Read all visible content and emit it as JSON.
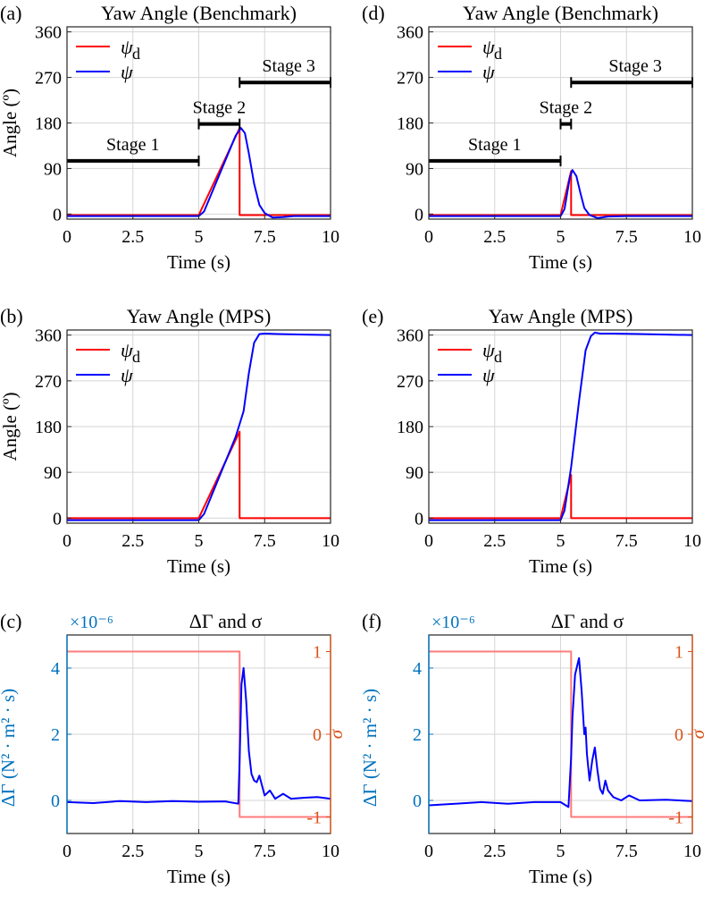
{
  "colors": {
    "psi_d": "#ff0000",
    "psi": "#0000ff",
    "delta_gamma_axis": "#0072BD",
    "sigma_axis": "#D95319",
    "sigma_line": "#ff7b7b",
    "stage_bar": "#000000",
    "grid": "#d6d6d6"
  },
  "chart_data": [
    {
      "id": "a",
      "panel_label": "(a)",
      "type": "line",
      "title": "Yaw Angle (Benchmark)",
      "xlabel": "Time (s)",
      "ylabel": "Angle (º)",
      "xlim": [
        0,
        10
      ],
      "ylim": [
        -10,
        370
      ],
      "xticks": [
        0,
        2.5,
        5,
        7.5,
        10
      ],
      "xtick_labels": [
        "0",
        "2.5",
        "5",
        "7.5",
        "10"
      ],
      "yticks": [
        0,
        90,
        180,
        270,
        360
      ],
      "ytick_labels": [
        "0",
        "90",
        "180",
        "270",
        "360"
      ],
      "legend": {
        "position": "top-left",
        "entries": [
          {
            "main": "ψ",
            "sub": "d"
          },
          {
            "main": "ψ",
            "sub": ""
          }
        ]
      },
      "series": [
        {
          "name": "ψd",
          "color": "#ff0000",
          "x": [
            0,
            5,
            6.55,
            6.55,
            10
          ],
          "y": [
            -2,
            -2,
            170,
            -2,
            -2
          ]
        },
        {
          "name": "ψ",
          "color": "#0000ff",
          "x": [
            0,
            2,
            5,
            5.2,
            6.4,
            6.6,
            6.75,
            6.9,
            7.1,
            7.3,
            7.5,
            7.8,
            8.2,
            8.6,
            9,
            10
          ],
          "y": [
            -4,
            -4,
            -4,
            5,
            155,
            170,
            160,
            120,
            60,
            18,
            2,
            -7,
            -6,
            -4,
            -4,
            -4
          ]
        }
      ],
      "stages": [
        {
          "label": "Stage 1",
          "x0": 0,
          "x1": 5,
          "y": 105
        },
        {
          "label": "Stage 2",
          "x0": 5,
          "x1": 6.55,
          "y": 178
        },
        {
          "label": "Stage 3",
          "x0": 6.55,
          "x1": 10,
          "y": 260
        }
      ]
    },
    {
      "id": "d",
      "panel_label": "(d)",
      "type": "line",
      "title": "Yaw Angle (Benchmark)",
      "xlabel": "Time (s)",
      "ylabel": "",
      "xlim": [
        0,
        10
      ],
      "ylim": [
        -10,
        370
      ],
      "xticks": [
        0,
        2.5,
        5,
        7.5,
        10
      ],
      "xtick_labels": [
        "0",
        "2.5",
        "5",
        "7.5",
        "10"
      ],
      "yticks": [
        0,
        90,
        180,
        270,
        360
      ],
      "ytick_labels": [
        "0",
        "90",
        "180",
        "270",
        "360"
      ],
      "legend": {
        "position": "top-left",
        "entries": [
          {
            "main": "ψ",
            "sub": "d"
          },
          {
            "main": "ψ",
            "sub": ""
          }
        ]
      },
      "series": [
        {
          "name": "ψd",
          "color": "#ff0000",
          "x": [
            0,
            5,
            5.4,
            5.4,
            10
          ],
          "y": [
            -2,
            -2,
            85,
            -2,
            -2
          ]
        },
        {
          "name": "ψ",
          "color": "#0000ff",
          "x": [
            0,
            5,
            5.15,
            5.35,
            5.45,
            5.6,
            5.75,
            5.9,
            6.1,
            6.4,
            6.8,
            7.5,
            10
          ],
          "y": [
            -4,
            -4,
            10,
            72,
            87,
            75,
            42,
            12,
            -2,
            -8,
            -5,
            -4,
            -4
          ]
        }
      ],
      "stages": [
        {
          "label": "Stage 1",
          "x0": 0,
          "x1": 5,
          "y": 105
        },
        {
          "label": "Stage 2",
          "x0": 5,
          "x1": 5.4,
          "y": 178
        },
        {
          "label": "Stage 3",
          "x0": 5.4,
          "x1": 10,
          "y": 260
        }
      ]
    },
    {
      "id": "b",
      "panel_label": "(b)",
      "type": "line",
      "title": "Yaw Angle (MPS)",
      "xlabel": "Time (s)",
      "ylabel": "Angle (º)",
      "xlim": [
        0,
        10
      ],
      "ylim": [
        -10,
        370
      ],
      "xticks": [
        0,
        2.5,
        5,
        7.5,
        10
      ],
      "xtick_labels": [
        "0",
        "2.5",
        "5",
        "7.5",
        "10"
      ],
      "yticks": [
        0,
        90,
        180,
        270,
        360
      ],
      "ytick_labels": [
        "0",
        "90",
        "180",
        "270",
        "360"
      ],
      "legend": {
        "position": "top-left",
        "entries": [
          {
            "main": "ψ",
            "sub": "d"
          },
          {
            "main": "ψ",
            "sub": ""
          }
        ]
      },
      "series": [
        {
          "name": "ψd",
          "color": "#ff0000",
          "x": [
            0,
            5,
            6.55,
            6.55,
            10
          ],
          "y": [
            0,
            0,
            170,
            0,
            0
          ]
        },
        {
          "name": "ψ",
          "color": "#0000ff",
          "x": [
            0,
            5,
            5.2,
            6.4,
            6.7,
            6.9,
            7.1,
            7.3,
            7.5,
            8,
            9,
            10
          ],
          "y": [
            -4,
            -4,
            8,
            160,
            210,
            285,
            345,
            362,
            363,
            362,
            361,
            360
          ]
        }
      ]
    },
    {
      "id": "e",
      "panel_label": "(e)",
      "type": "line",
      "title": "Yaw Angle (MPS)",
      "xlabel": "Time (s)",
      "ylabel": "",
      "xlim": [
        0,
        10
      ],
      "ylim": [
        -10,
        370
      ],
      "xticks": [
        0,
        2.5,
        5,
        7.5,
        10
      ],
      "xtick_labels": [
        "0",
        "2.5",
        "5",
        "7.5",
        "10"
      ],
      "yticks": [
        0,
        90,
        180,
        270,
        360
      ],
      "ytick_labels": [
        "0",
        "90",
        "180",
        "270",
        "360"
      ],
      "legend": {
        "position": "top-left",
        "entries": [
          {
            "main": "ψ",
            "sub": "d"
          },
          {
            "main": "ψ",
            "sub": ""
          }
        ]
      },
      "series": [
        {
          "name": "ψd",
          "color": "#ff0000",
          "x": [
            0,
            5,
            5.4,
            5.4,
            10
          ],
          "y": [
            0,
            0,
            85,
            0,
            0
          ]
        },
        {
          "name": "ψ",
          "color": "#0000ff",
          "x": [
            0,
            5,
            5.15,
            5.4,
            5.7,
            5.95,
            6.15,
            6.3,
            6.5,
            7,
            8,
            9,
            10
          ],
          "y": [
            -4,
            -4,
            15,
            100,
            230,
            330,
            358,
            365,
            363,
            363,
            362,
            361,
            360
          ]
        }
      ]
    },
    {
      "id": "c",
      "panel_label": "(c)",
      "type": "line",
      "title": "ΔΓ and σ",
      "xlabel": "Time (s)",
      "ylabel_left": "ΔΓ (N² · m² · s)",
      "ylabel_right": "σ",
      "exponent_label": "×10⁻⁶",
      "xlim": [
        0,
        10
      ],
      "ylim_left": [
        -1,
        5
      ],
      "ylim_right": [
        -1.2,
        1.2
      ],
      "xticks": [
        0,
        2.5,
        5,
        7.5,
        10
      ],
      "xtick_labels": [
        "0",
        "2.5",
        "5",
        "7.5",
        "10"
      ],
      "yticks_left": [
        0,
        2,
        4
      ],
      "ytick_labels_left": [
        "0",
        "2",
        "4"
      ],
      "yticks_right": [
        -1,
        0,
        1
      ],
      "ytick_labels_right": [
        "-1",
        "0",
        "1"
      ],
      "series": [
        {
          "name": "σ",
          "axis": "right",
          "color": "#ff7b7b",
          "x": [
            0,
            6.55,
            6.55,
            10
          ],
          "y": [
            1,
            1,
            -1,
            -1
          ]
        },
        {
          "name": "ΔΓ",
          "axis": "left",
          "color": "#0000ff",
          "x": [
            0,
            1,
            2,
            3,
            4,
            5,
            6,
            6.5,
            6.55,
            6.62,
            6.7,
            6.8,
            6.9,
            7.0,
            7.1,
            7.2,
            7.3,
            7.4,
            7.5,
            7.7,
            7.9,
            8.2,
            8.5,
            9,
            9.5,
            10
          ],
          "y": [
            -0.05,
            -0.08,
            -0.02,
            -0.05,
            -0.02,
            -0.04,
            -0.03,
            -0.1,
            1.2,
            3.5,
            4.0,
            3.0,
            1.5,
            0.8,
            0.6,
            0.55,
            0.75,
            0.45,
            0.15,
            0.3,
            0.05,
            0.2,
            0.05,
            0.08,
            0.1,
            0.05
          ]
        }
      ]
    },
    {
      "id": "f",
      "panel_label": "(f)",
      "type": "line",
      "title": "ΔΓ and σ",
      "xlabel": "Time (s)",
      "ylabel_left": "ΔΓ (N² · m² · s)",
      "ylabel_right": "σ",
      "exponent_label": "×10⁻⁶",
      "xlim": [
        0,
        10
      ],
      "ylim_left": [
        -1,
        5
      ],
      "ylim_right": [
        -1.2,
        1.2
      ],
      "xticks": [
        0,
        2.5,
        5,
        7.5,
        10
      ],
      "xtick_labels": [
        "0",
        "2.5",
        "5",
        "7.5",
        "10"
      ],
      "yticks_left": [
        0,
        2,
        4
      ],
      "ytick_labels_left": [
        "0",
        "2",
        "4"
      ],
      "yticks_right": [
        -1,
        0,
        1
      ],
      "ytick_labels_right": [
        "-1",
        "0",
        "1"
      ],
      "series": [
        {
          "name": "σ",
          "axis": "right",
          "color": "#ff7b7b",
          "x": [
            0,
            5.4,
            5.4,
            10
          ],
          "y": [
            1,
            1,
            -1,
            -1
          ]
        },
        {
          "name": "ΔΓ",
          "axis": "left",
          "color": "#0000ff",
          "x": [
            0,
            1,
            2,
            3,
            4,
            5,
            5.3,
            5.4,
            5.45,
            5.55,
            5.7,
            5.8,
            5.9,
            5.95,
            6.0,
            6.1,
            6.2,
            6.3,
            6.4,
            6.5,
            6.6,
            6.7,
            6.8,
            7.0,
            7.3,
            7.6,
            8,
            9,
            10
          ],
          "y": [
            -0.15,
            -0.1,
            -0.05,
            -0.1,
            -0.05,
            -0.05,
            -0.2,
            1.3,
            2.5,
            3.8,
            4.3,
            3.3,
            2.0,
            2.2,
            1.4,
            0.6,
            1.2,
            1.6,
            0.9,
            0.35,
            0.2,
            0.6,
            0.3,
            0.1,
            0.0,
            0.15,
            0.0,
            0.02,
            -0.02
          ]
        }
      ]
    }
  ]
}
